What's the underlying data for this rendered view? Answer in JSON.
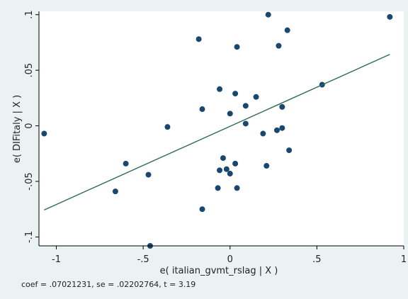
{
  "chart_data": {
    "type": "scatter",
    "title": "",
    "xlabel": "e( italian_gvmt_rslag | X )",
    "ylabel": "e( DIFitaly | X )",
    "xlim": [
      -1.1,
      1.0
    ],
    "ylim": [
      -0.108,
      0.103
    ],
    "x_ticks": [
      -1,
      -0.5,
      0,
      0.5,
      1
    ],
    "x_tick_labels": [
      "-1",
      "-.5",
      "0",
      ".5",
      "1"
    ],
    "y_ticks": [
      -0.1,
      -0.05,
      0,
      0.05,
      0.1
    ],
    "y_tick_labels": [
      "-.1",
      "-.05",
      "0",
      ".05",
      ".1"
    ],
    "grid": false,
    "legend": "none",
    "points": [
      {
        "x": -1.07,
        "y": -0.007
      },
      {
        "x": -0.66,
        "y": -0.059
      },
      {
        "x": -0.6,
        "y": -0.034
      },
      {
        "x": -0.47,
        "y": -0.044
      },
      {
        "x": -0.46,
        "y": -0.108
      },
      {
        "x": -0.36,
        "y": -0.001
      },
      {
        "x": -0.18,
        "y": 0.078
      },
      {
        "x": -0.16,
        "y": 0.015
      },
      {
        "x": -0.16,
        "y": -0.075
      },
      {
        "x": -0.07,
        "y": -0.056
      },
      {
        "x": -0.06,
        "y": 0.033
      },
      {
        "x": -0.06,
        "y": -0.04
      },
      {
        "x": -0.04,
        "y": -0.029
      },
      {
        "x": -0.02,
        "y": -0.039
      },
      {
        "x": 0.0,
        "y": 0.011
      },
      {
        "x": 0.0,
        "y": -0.043
      },
      {
        "x": 0.03,
        "y": 0.029
      },
      {
        "x": 0.03,
        "y": -0.034
      },
      {
        "x": 0.04,
        "y": 0.071
      },
      {
        "x": 0.04,
        "y": -0.056
      },
      {
        "x": 0.09,
        "y": 0.018
      },
      {
        "x": 0.09,
        "y": 0.002
      },
      {
        "x": 0.15,
        "y": 0.026
      },
      {
        "x": 0.19,
        "y": -0.007
      },
      {
        "x": 0.21,
        "y": -0.036
      },
      {
        "x": 0.22,
        "y": 0.1
      },
      {
        "x": 0.27,
        "y": -0.004
      },
      {
        "x": 0.28,
        "y": 0.072
      },
      {
        "x": 0.3,
        "y": 0.017
      },
      {
        "x": 0.3,
        "y": -0.002
      },
      {
        "x": 0.33,
        "y": 0.086
      },
      {
        "x": 0.34,
        "y": -0.022
      },
      {
        "x": 0.53,
        "y": 0.037
      },
      {
        "x": 0.92,
        "y": 0.098
      }
    ],
    "fit_line": {
      "x": [
        -1.07,
        0.92
      ],
      "y": [
        -0.0757,
        0.0643
      ]
    },
    "colors": {
      "background": "#eaf2f3",
      "plot_background": "#ffffff",
      "marker": "#1a476f",
      "fit_line": "#2d6b53",
      "frame": "#000000"
    }
  },
  "note": {
    "text": "coef = .07021231, se = .02202764, t = 3.19"
  }
}
